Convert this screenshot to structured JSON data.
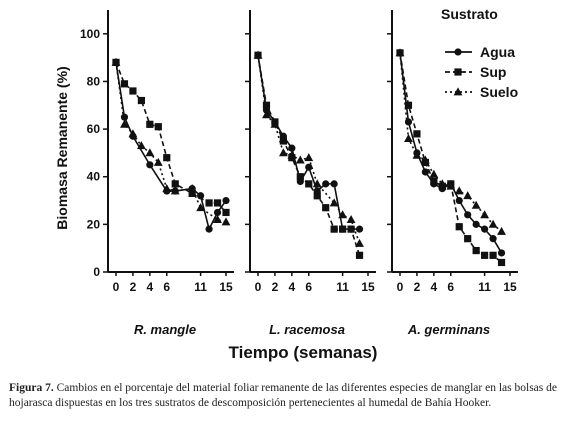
{
  "caption": {
    "label": "Figura 7.",
    "text": "Cambios en el porcentaje del material foliar remanente de las diferentes especies de manglar en las bolsas de hojarasca dispuestas en los tres sustratos de descomposición pertenecientes al humedal de Bahía Hooker."
  },
  "chart_data": {
    "type": "line",
    "ylabel": "Biomasa Remanente (%)",
    "xlabel": "Tiempo (semanas)",
    "ylim": [
      0,
      100
    ],
    "yticks": [
      0,
      20,
      40,
      60,
      80,
      100
    ],
    "x_tick_labels": [
      "0",
      "2",
      "4",
      "6",
      "11",
      "15"
    ],
    "legend": {
      "title": "Sustrato",
      "placement": "top-right",
      "entries": [
        "Agua",
        "Sup",
        "Suelo"
      ]
    },
    "panels": [
      {
        "title": "R. mangle",
        "series": [
          {
            "name": "Agua",
            "marker": "circle",
            "dash": "solid",
            "points": [
              [
                0,
                88
              ],
              [
                1,
                65
              ],
              [
                2,
                57
              ],
              [
                4,
                45
              ],
              [
                6,
                34
              ],
              [
                7,
                34
              ],
              [
                9,
                35
              ],
              [
                10,
                32
              ],
              [
                11,
                18
              ],
              [
                12,
                25
              ],
              [
                13,
                30
              ]
            ]
          },
          {
            "name": "Sup",
            "marker": "square",
            "dash": "dashed",
            "points": [
              [
                0,
                88
              ],
              [
                1,
                79
              ],
              [
                2,
                76
              ],
              [
                3,
                72
              ],
              [
                4,
                62
              ],
              [
                5,
                61
              ],
              [
                6,
                48
              ],
              [
                7,
                37
              ],
              [
                9,
                33
              ],
              [
                11,
                29
              ],
              [
                12,
                29
              ],
              [
                13,
                25
              ]
            ]
          },
          {
            "name": "Suelo",
            "marker": "triangle",
            "dash": "dotted",
            "points": [
              [
                0,
                88
              ],
              [
                1,
                62
              ],
              [
                2,
                58
              ],
              [
                3,
                53
              ],
              [
                4,
                50
              ],
              [
                5,
                46
              ],
              [
                6,
                35
              ],
              [
                7,
                34
              ],
              [
                9,
                35
              ],
              [
                10,
                27
              ],
              [
                12,
                22
              ],
              [
                13,
                21
              ]
            ]
          }
        ]
      },
      {
        "title": "L. racemosa",
        "series": [
          {
            "name": "Agua",
            "marker": "circle",
            "dash": "solid",
            "points": [
              [
                0,
                91
              ],
              [
                1,
                68
              ],
              [
                2,
                63
              ],
              [
                3,
                57
              ],
              [
                4,
                52
              ],
              [
                5,
                38
              ],
              [
                6,
                44
              ],
              [
                7,
                34
              ],
              [
                8,
                37
              ],
              [
                9,
                37
              ],
              [
                10,
                18
              ],
              [
                11,
                18
              ],
              [
                12,
                18
              ]
            ]
          },
          {
            "name": "Sup",
            "marker": "square",
            "dash": "dashed",
            "points": [
              [
                0,
                91
              ],
              [
                1,
                70
              ],
              [
                2,
                63
              ],
              [
                3,
                55
              ],
              [
                4,
                48
              ],
              [
                5,
                40
              ],
              [
                6,
                37
              ],
              [
                7,
                32
              ],
              [
                8,
                27
              ],
              [
                9,
                18
              ],
              [
                10,
                18
              ],
              [
                11,
                18
              ],
              [
                12,
                7
              ]
            ]
          },
          {
            "name": "Suelo",
            "marker": "triangle",
            "dash": "dotted",
            "points": [
              [
                0,
                91
              ],
              [
                1,
                66
              ],
              [
                2,
                62
              ],
              [
                3,
                50
              ],
              [
                4,
                49
              ],
              [
                5,
                47
              ],
              [
                6,
                48
              ],
              [
                7,
                37
              ],
              [
                9,
                29
              ],
              [
                10,
                24
              ],
              [
                11,
                22
              ],
              [
                12,
                12
              ]
            ]
          }
        ]
      },
      {
        "title": "A. germinans",
        "series": [
          {
            "name": "Agua",
            "marker": "circle",
            "dash": "solid",
            "points": [
              [
                0,
                92
              ],
              [
                1,
                63
              ],
              [
                2,
                50
              ],
              [
                3,
                42
              ],
              [
                4,
                37
              ],
              [
                5,
                35
              ],
              [
                6,
                37
              ],
              [
                7,
                30
              ],
              [
                8,
                24
              ],
              [
                9,
                20
              ],
              [
                10,
                18
              ],
              [
                11,
                14
              ],
              [
                12,
                8
              ]
            ]
          },
          {
            "name": "Sup",
            "marker": "square",
            "dash": "dashed",
            "points": [
              [
                0,
                92
              ],
              [
                1,
                70
              ],
              [
                2,
                58
              ],
              [
                3,
                46
              ],
              [
                4,
                38
              ],
              [
                5,
                36
              ],
              [
                6,
                37
              ],
              [
                7,
                19
              ],
              [
                8,
                14
              ],
              [
                9,
                9
              ],
              [
                10,
                7
              ],
              [
                11,
                7
              ],
              [
                12,
                4
              ]
            ]
          },
          {
            "name": "Suelo",
            "marker": "triangle",
            "dash": "dotted",
            "points": [
              [
                0,
                92
              ],
              [
                1,
                56
              ],
              [
                2,
                49
              ],
              [
                3,
                47
              ],
              [
                4,
                41
              ],
              [
                5,
                37
              ],
              [
                6,
                36
              ],
              [
                7,
                34
              ],
              [
                8,
                32
              ],
              [
                9,
                28
              ],
              [
                10,
                24
              ],
              [
                11,
                20
              ],
              [
                12,
                17
              ]
            ]
          }
        ]
      }
    ]
  }
}
